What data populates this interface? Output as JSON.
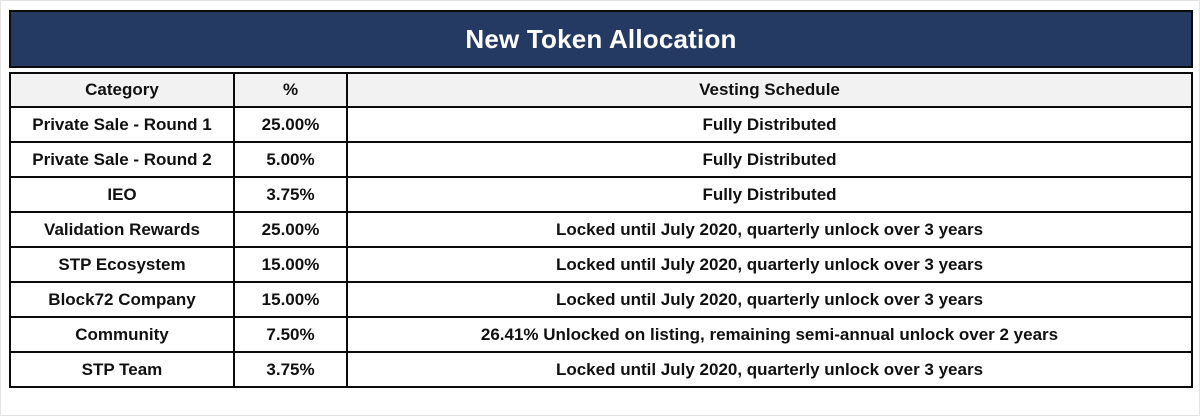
{
  "title": "New Token Allocation",
  "colors": {
    "title_bar_bg": "#253a62",
    "title_text": "#ffffff",
    "header_row_bg": "#f2f2f2",
    "highlight_cell_bg": "#f7ecca",
    "border": "#0b0b0b",
    "body_text": "#111111"
  },
  "table": {
    "columns": [
      "Category",
      "%",
      "Vesting Schedule"
    ],
    "rows": [
      {
        "category": "Private Sale - Round 1",
        "percent": "25.00%",
        "vesting": "Fully Distributed",
        "vesting_highlight": false
      },
      {
        "category": "Private Sale - Round 2",
        "percent": "5.00%",
        "vesting": "Fully Distributed",
        "vesting_highlight": false
      },
      {
        "category": "IEO",
        "percent": "3.75%",
        "vesting": "Fully Distributed",
        "vesting_highlight": false
      },
      {
        "category": "Validation Rewards",
        "percent": "25.00%",
        "vesting": "Locked until July 2020, quarterly unlock over 3 years",
        "vesting_highlight": true
      },
      {
        "category": "STP Ecosystem",
        "percent": "15.00%",
        "vesting": "Locked until July 2020, quarterly unlock over 3 years",
        "vesting_highlight": true
      },
      {
        "category": "Block72 Company",
        "percent": "15.00%",
        "vesting": "Locked until July 2020, quarterly unlock over 3 years",
        "vesting_highlight": true
      },
      {
        "category": "Community",
        "percent": "7.50%",
        "vesting": "26.41% Unlocked on listing, remaining semi-annual unlock over 2 years",
        "vesting_highlight": false
      },
      {
        "category": "STP Team",
        "percent": "3.75%",
        "vesting": "Locked until July 2020, quarterly unlock over 3 years",
        "vesting_highlight": true
      }
    ]
  }
}
